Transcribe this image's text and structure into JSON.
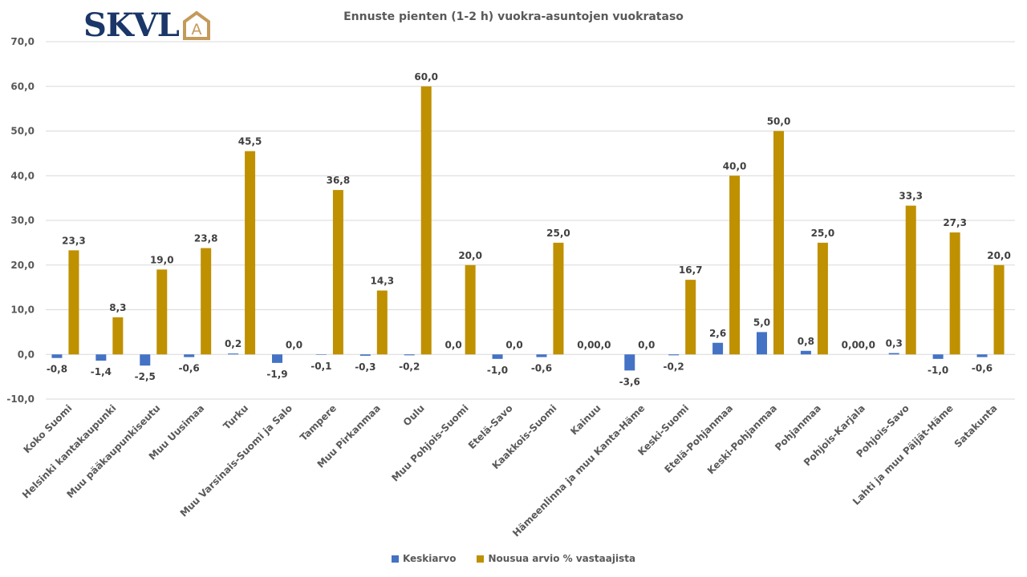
{
  "logo": {
    "text": "SKVL",
    "badge": "A"
  },
  "colors": {
    "keskiarvo": "#4472c4",
    "nousua": "#bf9000",
    "logo_blue": "#1b3668",
    "logo_gold": "#c49a5a",
    "grid": "#d9d9d9"
  },
  "chart_data": {
    "type": "bar",
    "title": "Ennuste pienten (1-2 h) vuokra-asuntojen vuokrataso",
    "xlabel": "",
    "ylabel": "",
    "ylim": [
      -10,
      70
    ],
    "yticks": [
      70,
      60,
      50,
      40,
      30,
      20,
      10,
      0,
      -10
    ],
    "ytick_labels": [
      "70,0",
      "60,0",
      "50,0",
      "40,0",
      "30,0",
      "20,0",
      "10,0",
      "0,0",
      "-10,0"
    ],
    "grid": true,
    "legend_position": "bottom",
    "categories": [
      "Koko Suomi",
      "Helsinki kantakaupunki",
      "Muu pääkaupunkiseutu",
      "Muu Uusimaa",
      "Turku",
      "Muu Varsinais-Suomi ja Salo",
      "Tampere",
      "Muu Pirkanmaa",
      "Oulu",
      "Muu Pohjois-Suomi",
      "Etelä-Savo",
      "Kaakkois-Suomi",
      "Kainuu",
      "Hämeenlinna ja muu Kanta-Häme",
      "Keski-Suomi",
      "Etelä-Pohjanmaa",
      "Keski-Pohjanmaa",
      "Pohjanmaa",
      "Pohjois-Karjala",
      "Pohjois-Savo",
      "Lahti ja muu Päijät-Häme",
      "Satakunta"
    ],
    "series": [
      {
        "name": "Keskiarvo",
        "values": [
          -0.8,
          -1.4,
          -2.5,
          -0.6,
          0.2,
          -1.9,
          -0.1,
          -0.3,
          -0.2,
          0.0,
          -1.0,
          -0.6,
          0.0,
          -3.6,
          -0.2,
          2.6,
          5.0,
          0.8,
          0.0,
          0.3,
          -1.0,
          -0.6
        ],
        "labels": [
          "-0,8",
          "-1,4",
          "-2,5",
          "-0,6",
          "0,2",
          "-1,9",
          "-0,1",
          "-0,3",
          "-0,2",
          "0,0",
          "-1,0",
          "-0,6",
          "0,0",
          "-3,6",
          "-0,2",
          "2,6",
          "5,0",
          "0,8",
          "0,0",
          "0,3",
          "-1,0",
          "-0,6"
        ]
      },
      {
        "name": "Nousua arvio % vastaajista",
        "values": [
          23.3,
          8.3,
          19.0,
          23.8,
          45.5,
          0.0,
          36.8,
          14.3,
          60.0,
          20.0,
          0.0,
          25.0,
          0.0,
          0.0,
          16.7,
          40.0,
          50.0,
          25.0,
          0.0,
          33.3,
          27.3,
          20.0
        ],
        "labels": [
          "23,3",
          "8,3",
          "19,0",
          "23,8",
          "45,5",
          "0,0",
          "36,8",
          "14,3",
          "60,0",
          "20,0",
          "0,0",
          "25,0",
          "0,0",
          "0,0",
          "16,7",
          "40,0",
          "50,0",
          "25,0",
          "0,0",
          "33,3",
          "27,3",
          "20,0"
        ]
      }
    ]
  }
}
